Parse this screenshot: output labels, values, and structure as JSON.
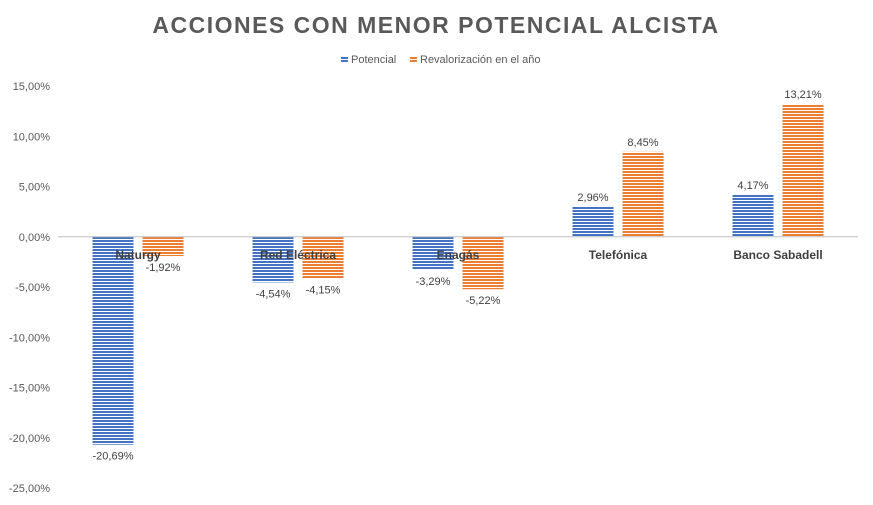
{
  "chart_data": {
    "type": "bar",
    "title": "ACCIONES CON MENOR POTENCIAL ALCISTA",
    "categories": [
      "Naturgy",
      "Red Eléctrica",
      "Enagás",
      "Telefónica",
      "Banco Sabadell"
    ],
    "series": [
      {
        "name": "Potencial",
        "color": "#4472C4",
        "values": [
          -20.69,
          -4.54,
          -3.29,
          2.96,
          4.17
        ],
        "labels": [
          "-20,69%",
          "-4,54%",
          "-3,29%",
          "2,96%",
          "4,17%"
        ]
      },
      {
        "name": "Revalorización en el año",
        "color": "#ED7D31",
        "values": [
          -1.92,
          -4.15,
          -5.22,
          8.45,
          13.21
        ],
        "labels": [
          "-1,92%",
          "-4,15%",
          "-5,22%",
          "8,45%",
          "13,21%"
        ]
      }
    ],
    "ylim": [
      -25,
      15
    ],
    "yticks": [
      15,
      10,
      5,
      0,
      -5,
      -10,
      -15,
      -20,
      -25
    ],
    "ytick_labels": [
      "15,00%",
      "10,00%",
      "5,00%",
      "0,00%",
      "-5,00%",
      "-10,00%",
      "-15,00%",
      "-20,00%",
      "-25,00%"
    ],
    "legend_position": "top",
    "grid": false,
    "bar_pattern": "horizontal-stripes"
  }
}
